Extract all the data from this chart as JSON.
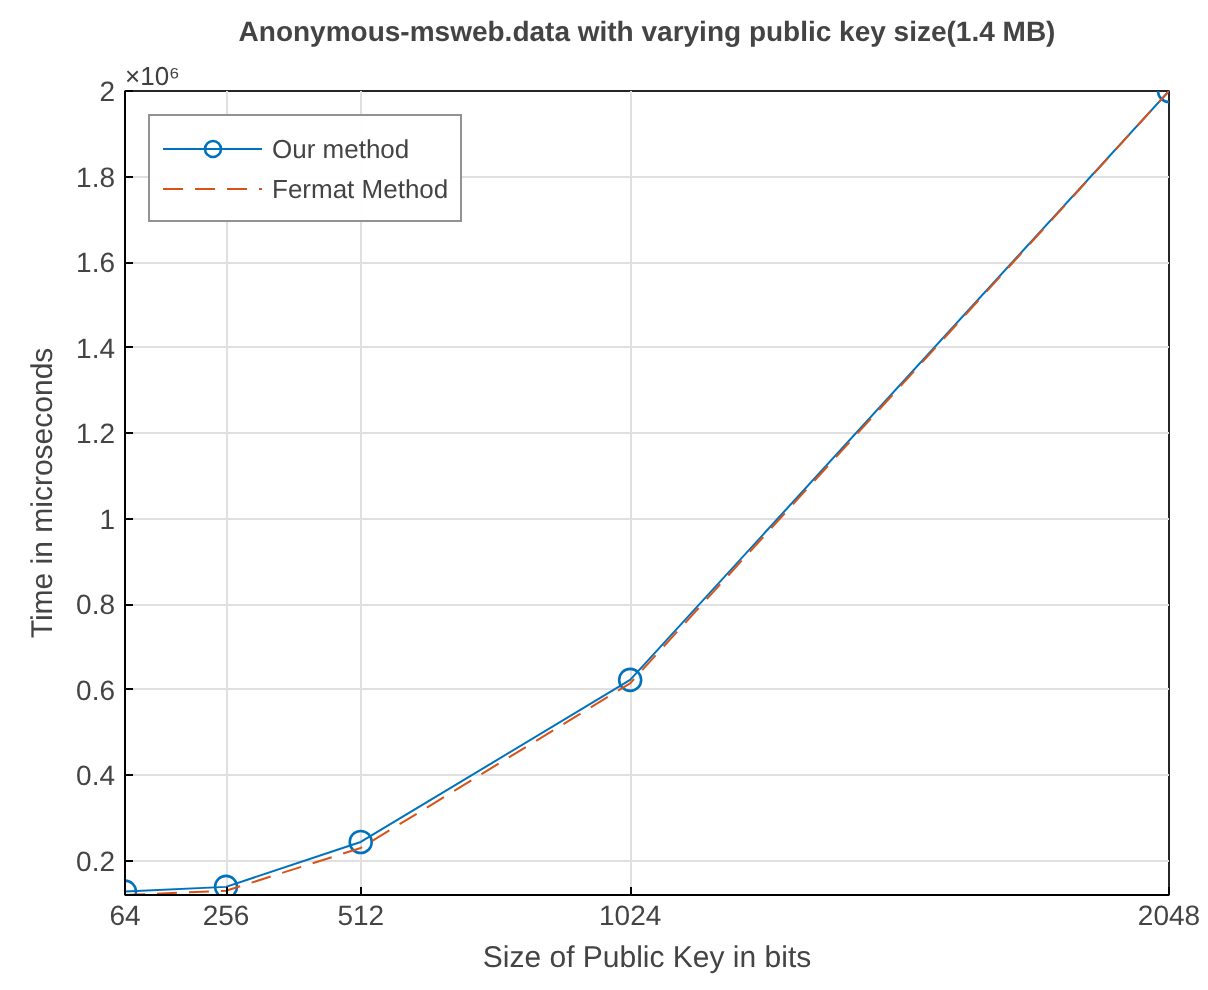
{
  "chart_data": {
    "type": "line",
    "title": "Anonymous-msweb.data with varying public key size(1.4 MB)",
    "xlabel": "Size of Public Key in bits",
    "ylabel": "Time in microseconds",
    "annotations": [
      "×10⁶"
    ],
    "x": [
      64,
      256,
      512,
      1024,
      2048
    ],
    "series": [
      {
        "name": "Our method",
        "color": "#0072bd",
        "values": [
          0.128,
          0.139,
          0.244,
          0.623,
          2.0
        ],
        "marker": "circle",
        "line_style": "solid"
      },
      {
        "name": "Fermat Method",
        "color": "#d95319",
        "values": [
          0.12,
          0.13,
          0.23,
          0.615,
          2.0
        ],
        "marker": "none",
        "line_style": "dashed"
      }
    ],
    "xlim": [
      64,
      2048
    ],
    "xticks": [
      64,
      256,
      512,
      1024,
      2048
    ],
    "ylim": [
      0.12,
      2
    ],
    "yticks": [
      0.2,
      0.4,
      0.6,
      0.8,
      1,
      1.2,
      1.4,
      1.6,
      1.8,
      2
    ],
    "grid": true,
    "legend": "top left"
  }
}
